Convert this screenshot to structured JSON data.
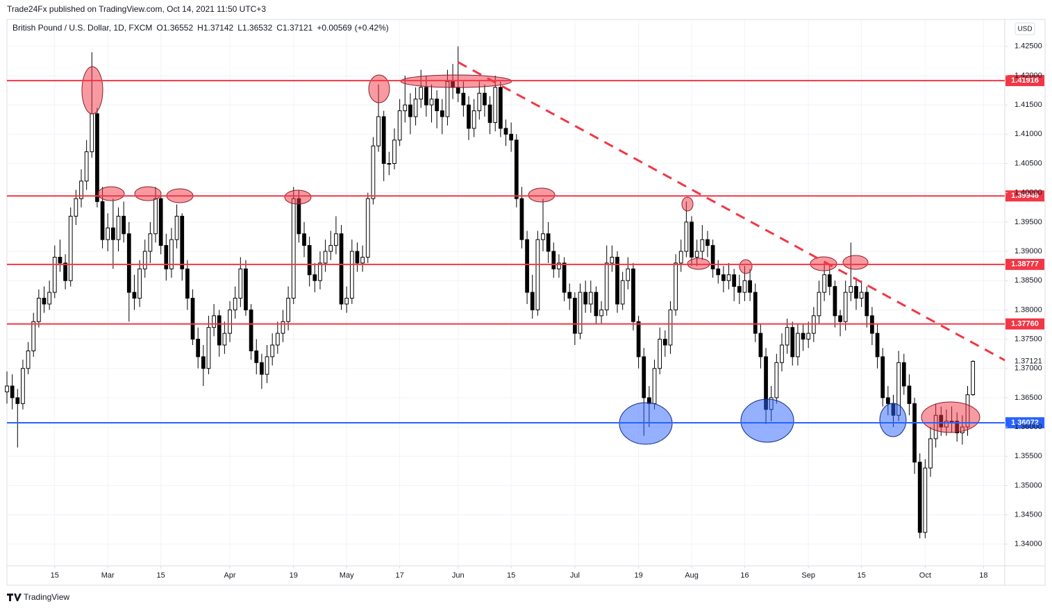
{
  "header": {
    "publisher": "Trade24Fx published on TradingView.com, Oct 14, 2021 11:50 UTC+3",
    "brand": "TradingView",
    "currency": "USD"
  },
  "chart_data": {
    "type": "candlestick",
    "title": "British Pound / U.S. Dollar, 1D, FXCM",
    "ohlc_prefixes": [
      "O",
      "H",
      "L",
      "C"
    ],
    "change": "+0.00569",
    "change_pct": "(+0.42%)",
    "xlim": [
      0,
      188
    ],
    "ylim": [
      1.3363,
      1.4296
    ],
    "xticks": [
      {
        "value": 9,
        "label": "15"
      },
      {
        "value": 19,
        "label": "Mar"
      },
      {
        "value": 29,
        "label": "15"
      },
      {
        "value": 42,
        "label": "Apr"
      },
      {
        "value": 54,
        "label": "19"
      },
      {
        "value": 64,
        "label": "May"
      },
      {
        "value": 74,
        "label": "17"
      },
      {
        "value": 85,
        "label": "Jun"
      },
      {
        "value": 95,
        "label": "15"
      },
      {
        "value": 107,
        "label": "Jul"
      },
      {
        "value": 119,
        "label": "19"
      },
      {
        "value": 129,
        "label": "Aug"
      },
      {
        "value": 139,
        "label": "16"
      },
      {
        "value": 151,
        "label": "Sep"
      },
      {
        "value": 161,
        "label": "15"
      },
      {
        "value": 173,
        "label": "Oct"
      },
      {
        "value": 184,
        "label": "18"
      }
    ],
    "yticks": [
      {
        "value": 1.34,
        "label": "1.34000"
      },
      {
        "value": 1.345,
        "label": "1.34500"
      },
      {
        "value": 1.35,
        "label": "1.35000"
      },
      {
        "value": 1.355,
        "label": "1.35500"
      },
      {
        "value": 1.36,
        "label": "1.36000"
      },
      {
        "value": 1.365,
        "label": "1.36500"
      },
      {
        "value": 1.37,
        "label": "1.37000"
      },
      {
        "value": 1.375,
        "label": "1.37500"
      },
      {
        "value": 1.38,
        "label": "1.38000"
      },
      {
        "value": 1.385,
        "label": "1.38500"
      },
      {
        "value": 1.39,
        "label": "1.39000"
      },
      {
        "value": 1.395,
        "label": "1.39500"
      },
      {
        "value": 1.4,
        "label": "1.40000"
      },
      {
        "value": 1.405,
        "label": "1.40500"
      },
      {
        "value": 1.41,
        "label": "1.41000"
      },
      {
        "value": 1.415,
        "label": "1.41500"
      },
      {
        "value": 1.42,
        "label": "1.42000"
      },
      {
        "value": 1.425,
        "label": "1.42500"
      }
    ],
    "grid": true,
    "up_color": "#ffffff",
    "down_color": "#000000",
    "levels": [
      {
        "price": 1.41916,
        "color": "#f23645"
      },
      {
        "price": 1.39946,
        "color": "#f23645"
      },
      {
        "price": 1.38777,
        "color": "#f23645"
      },
      {
        "price": 1.3776,
        "label": "1.37760",
        "color": "#f23645"
      },
      {
        "price": 1.36072,
        "color": "#2962ff"
      }
    ],
    "trendline": {
      "x": [
        85,
        188
      ],
      "y": [
        1.4223,
        1.3714
      ],
      "color": "#f23645"
    },
    "candles": [
      [
        1.366,
        1.3695,
        1.364,
        1.367
      ],
      [
        1.367,
        1.369,
        1.363,
        1.365
      ],
      [
        1.365,
        1.3665,
        1.3565,
        1.364
      ],
      [
        1.364,
        1.3715,
        1.363,
        1.37
      ],
      [
        1.37,
        1.3745,
        1.369,
        1.373
      ],
      [
        1.373,
        1.3795,
        1.372,
        1.378
      ],
      [
        1.378,
        1.3835,
        1.377,
        1.382
      ],
      [
        1.382,
        1.384,
        1.3795,
        1.381
      ],
      [
        1.381,
        1.385,
        1.38,
        1.383
      ],
      [
        1.383,
        1.391,
        1.382,
        1.389
      ],
      [
        1.389,
        1.392,
        1.3865,
        1.388
      ],
      [
        1.388,
        1.3895,
        1.3835,
        1.385
      ],
      [
        1.385,
        1.3975,
        1.384,
        1.396
      ],
      [
        1.396,
        1.4005,
        1.3945,
        1.399
      ],
      [
        1.399,
        1.404,
        1.3975,
        1.402
      ],
      [
        1.402,
        1.409,
        1.4005,
        1.407
      ],
      [
        1.407,
        1.424,
        1.406,
        1.4135
      ],
      [
        1.4135,
        1.4145,
        1.3975,
        1.3985
      ],
      [
        1.3985,
        1.401,
        1.3905,
        1.392
      ],
      [
        1.392,
        1.3965,
        1.39,
        1.394
      ],
      [
        1.394,
        1.399,
        1.387,
        1.392
      ],
      [
        1.392,
        1.3975,
        1.39,
        1.396
      ],
      [
        1.396,
        1.3985,
        1.3915,
        1.393
      ],
      [
        1.393,
        1.395,
        1.378,
        1.383
      ],
      [
        1.383,
        1.386,
        1.38,
        1.382
      ],
      [
        1.382,
        1.3885,
        1.3805,
        1.387
      ],
      [
        1.387,
        1.392,
        1.3855,
        1.39
      ],
      [
        1.39,
        1.395,
        1.388,
        1.393
      ],
      [
        1.393,
        1.401,
        1.3915,
        1.399
      ],
      [
        1.399,
        1.3995,
        1.3895,
        1.391
      ],
      [
        1.391,
        1.393,
        1.385,
        1.387
      ],
      [
        1.387,
        1.394,
        1.3855,
        1.392
      ],
      [
        1.392,
        1.398,
        1.3905,
        1.396
      ],
      [
        1.396,
        1.3965,
        1.385,
        1.387
      ],
      [
        1.387,
        1.3885,
        1.38,
        1.382
      ],
      [
        1.382,
        1.3835,
        1.374,
        1.375
      ],
      [
        1.375,
        1.377,
        1.37,
        1.372
      ],
      [
        1.372,
        1.374,
        1.367,
        1.37
      ],
      [
        1.37,
        1.379,
        1.369,
        1.377
      ],
      [
        1.377,
        1.381,
        1.3755,
        1.379
      ],
      [
        1.379,
        1.38,
        1.372,
        1.374
      ],
      [
        1.374,
        1.378,
        1.3725,
        1.376
      ],
      [
        1.376,
        1.3815,
        1.3745,
        1.38
      ],
      [
        1.38,
        1.384,
        1.3785,
        1.382
      ],
      [
        1.382,
        1.389,
        1.3805,
        1.387
      ],
      [
        1.387,
        1.3885,
        1.379,
        1.38
      ],
      [
        1.38,
        1.381,
        1.3715,
        1.373
      ],
      [
        1.373,
        1.375,
        1.369,
        1.371
      ],
      [
        1.371,
        1.3725,
        1.3665,
        1.369
      ],
      [
        1.369,
        1.374,
        1.3675,
        1.372
      ],
      [
        1.372,
        1.376,
        1.3705,
        1.374
      ],
      [
        1.374,
        1.378,
        1.3725,
        1.376
      ],
      [
        1.376,
        1.38,
        1.3745,
        1.378
      ],
      [
        1.378,
        1.384,
        1.3765,
        1.382
      ],
      [
        1.382,
        1.401,
        1.381,
        1.399
      ],
      [
        1.399,
        1.4005,
        1.3915,
        1.393
      ],
      [
        1.393,
        1.395,
        1.389,
        1.391
      ],
      [
        1.391,
        1.3925,
        1.384,
        1.386
      ],
      [
        1.386,
        1.388,
        1.383,
        1.385
      ],
      [
        1.385,
        1.39,
        1.3835,
        1.388
      ],
      [
        1.388,
        1.392,
        1.3865,
        1.39
      ],
      [
        1.39,
        1.3935,
        1.3885,
        1.391
      ],
      [
        1.391,
        1.396,
        1.3895,
        1.393
      ],
      [
        1.393,
        1.3945,
        1.38,
        1.381
      ],
      [
        1.381,
        1.384,
        1.3795,
        1.382
      ],
      [
        1.382,
        1.392,
        1.381,
        1.39
      ],
      [
        1.39,
        1.3915,
        1.3865,
        1.388
      ],
      [
        1.388,
        1.391,
        1.3865,
        1.389
      ],
      [
        1.389,
        1.4,
        1.388,
        1.399
      ],
      [
        1.399,
        1.4095,
        1.398,
        1.408
      ],
      [
        1.408,
        1.4185,
        1.407,
        1.413
      ],
      [
        1.413,
        1.414,
        1.402,
        1.405
      ],
      [
        1.405,
        1.407,
        1.403,
        1.405
      ],
      [
        1.405,
        1.411,
        1.404,
        1.409
      ],
      [
        1.409,
        1.416,
        1.408,
        1.414
      ],
      [
        1.414,
        1.42,
        1.412,
        1.415
      ],
      [
        1.415,
        1.417,
        1.41,
        1.413
      ],
      [
        1.413,
        1.418,
        1.4115,
        1.416
      ],
      [
        1.416,
        1.421,
        1.4145,
        1.418
      ],
      [
        1.418,
        1.42,
        1.413,
        1.415
      ],
      [
        1.415,
        1.4185,
        1.412,
        1.416
      ],
      [
        1.416,
        1.4175,
        1.411,
        1.414
      ],
      [
        1.414,
        1.416,
        1.41,
        1.413
      ],
      [
        1.413,
        1.421,
        1.4115,
        1.419
      ],
      [
        1.419,
        1.422,
        1.416,
        1.418
      ],
      [
        1.418,
        1.425,
        1.4155,
        1.417
      ],
      [
        1.417,
        1.419,
        1.413,
        1.415
      ],
      [
        1.415,
        1.4165,
        1.409,
        1.411
      ],
      [
        1.411,
        1.416,
        1.4095,
        1.414
      ],
      [
        1.414,
        1.419,
        1.4125,
        1.417
      ],
      [
        1.417,
        1.4185,
        1.413,
        1.415
      ],
      [
        1.415,
        1.4165,
        1.41,
        1.412
      ],
      [
        1.412,
        1.42,
        1.4105,
        1.418
      ],
      [
        1.418,
        1.419,
        1.4095,
        1.411
      ],
      [
        1.411,
        1.4125,
        1.408,
        1.41
      ],
      [
        1.41,
        1.412,
        1.407,
        1.409
      ],
      [
        1.409,
        1.41,
        1.3975,
        1.399
      ],
      [
        1.399,
        1.401,
        1.3905,
        1.392
      ],
      [
        1.392,
        1.3935,
        1.381,
        1.383
      ],
      [
        1.383,
        1.386,
        1.3785,
        1.38
      ],
      [
        1.38,
        1.3935,
        1.379,
        1.392
      ],
      [
        1.392,
        1.399,
        1.39,
        1.393
      ],
      [
        1.393,
        1.395,
        1.388,
        1.39
      ],
      [
        1.39,
        1.3915,
        1.3855,
        1.387
      ],
      [
        1.387,
        1.3895,
        1.3855,
        1.388
      ],
      [
        1.388,
        1.389,
        1.3815,
        1.383
      ],
      [
        1.383,
        1.3845,
        1.38,
        1.382
      ],
      [
        1.382,
        1.383,
        1.374,
        1.376
      ],
      [
        1.376,
        1.3845,
        1.375,
        1.383
      ],
      [
        1.383,
        1.385,
        1.3795,
        1.381
      ],
      [
        1.381,
        1.385,
        1.3795,
        1.383
      ],
      [
        1.383,
        1.384,
        1.3775,
        1.379
      ],
      [
        1.379,
        1.3815,
        1.3775,
        1.38
      ],
      [
        1.38,
        1.391,
        1.379,
        1.388
      ],
      [
        1.388,
        1.391,
        1.3865,
        1.389
      ],
      [
        1.389,
        1.39,
        1.3795,
        1.381
      ],
      [
        1.381,
        1.3865,
        1.38,
        1.385
      ],
      [
        1.385,
        1.389,
        1.3835,
        1.387
      ],
      [
        1.387,
        1.388,
        1.3765,
        1.378
      ],
      [
        1.378,
        1.379,
        1.37,
        1.372
      ],
      [
        1.372,
        1.3735,
        1.3585,
        1.365
      ],
      [
        1.365,
        1.367,
        1.36,
        1.364
      ],
      [
        1.364,
        1.3715,
        1.363,
        1.37
      ],
      [
        1.37,
        1.377,
        1.369,
        1.375
      ],
      [
        1.375,
        1.3765,
        1.372,
        1.374
      ],
      [
        1.374,
        1.3815,
        1.3725,
        1.38
      ],
      [
        1.38,
        1.3895,
        1.379,
        1.388
      ],
      [
        1.388,
        1.392,
        1.3865,
        1.39
      ],
      [
        1.39,
        1.3985,
        1.389,
        1.395
      ],
      [
        1.395,
        1.396,
        1.3875,
        1.389
      ],
      [
        1.389,
        1.392,
        1.3875,
        1.39
      ],
      [
        1.39,
        1.3945,
        1.3885,
        1.392
      ],
      [
        1.392,
        1.3935,
        1.389,
        1.391
      ],
      [
        1.391,
        1.392,
        1.3855,
        1.387
      ],
      [
        1.387,
        1.3885,
        1.3845,
        1.386
      ],
      [
        1.386,
        1.3875,
        1.383,
        1.385
      ],
      [
        1.385,
        1.388,
        1.3835,
        1.386
      ],
      [
        1.386,
        1.387,
        1.3815,
        1.384
      ],
      [
        1.384,
        1.386,
        1.381,
        1.383
      ],
      [
        1.383,
        1.3875,
        1.3815,
        1.385
      ],
      [
        1.385,
        1.387,
        1.3815,
        1.383
      ],
      [
        1.383,
        1.3845,
        1.3745,
        1.376
      ],
      [
        1.376,
        1.3775,
        1.37,
        1.372
      ],
      [
        1.372,
        1.3735,
        1.3605,
        1.363
      ],
      [
        1.363,
        1.367,
        1.361,
        1.365
      ],
      [
        1.365,
        1.3725,
        1.364,
        1.371
      ],
      [
        1.371,
        1.376,
        1.3695,
        1.374
      ],
      [
        1.374,
        1.3785,
        1.3725,
        1.377
      ],
      [
        1.377,
        1.378,
        1.3705,
        1.372
      ],
      [
        1.372,
        1.3775,
        1.3705,
        1.376
      ],
      [
        1.376,
        1.3775,
        1.373,
        1.375
      ],
      [
        1.375,
        1.378,
        1.3735,
        1.376
      ],
      [
        1.376,
        1.3805,
        1.3745,
        1.379
      ],
      [
        1.379,
        1.385,
        1.3775,
        1.383
      ],
      [
        1.383,
        1.388,
        1.3815,
        1.386
      ],
      [
        1.386,
        1.3875,
        1.3825,
        1.384
      ],
      [
        1.384,
        1.385,
        1.377,
        1.379
      ],
      [
        1.379,
        1.38,
        1.3755,
        1.378
      ],
      [
        1.378,
        1.385,
        1.3765,
        1.383
      ],
      [
        1.383,
        1.3915,
        1.3815,
        1.384
      ],
      [
        1.384,
        1.3855,
        1.38,
        1.382
      ],
      [
        1.382,
        1.385,
        1.3805,
        1.383
      ],
      [
        1.383,
        1.384,
        1.377,
        1.379
      ],
      [
        1.379,
        1.3805,
        1.374,
        1.376
      ],
      [
        1.376,
        1.3775,
        1.37,
        1.372
      ],
      [
        1.372,
        1.3735,
        1.3635,
        1.365
      ],
      [
        1.365,
        1.367,
        1.362,
        1.364
      ],
      [
        1.364,
        1.3655,
        1.36,
        1.362
      ],
      [
        1.362,
        1.373,
        1.361,
        1.371
      ],
      [
        1.371,
        1.3725,
        1.3655,
        1.367
      ],
      [
        1.367,
        1.369,
        1.362,
        1.364
      ],
      [
        1.364,
        1.365,
        1.352,
        1.354
      ],
      [
        1.354,
        1.3555,
        1.341,
        1.342
      ],
      [
        1.342,
        1.3545,
        1.341,
        1.353
      ],
      [
        1.353,
        1.36,
        1.3515,
        1.358
      ],
      [
        1.358,
        1.364,
        1.3565,
        1.362
      ],
      [
        1.362,
        1.3635,
        1.3585,
        1.36
      ],
      [
        1.36,
        1.363,
        1.3585,
        1.361
      ],
      [
        1.361,
        1.3635,
        1.359,
        1.361
      ],
      [
        1.361,
        1.3625,
        1.3575,
        1.359
      ],
      [
        1.359,
        1.362,
        1.357,
        1.36
      ],
      [
        1.36,
        1.367,
        1.3585,
        1.3655
      ],
      [
        1.36552,
        1.37142,
        1.36532,
        1.37121
      ]
    ]
  }
}
